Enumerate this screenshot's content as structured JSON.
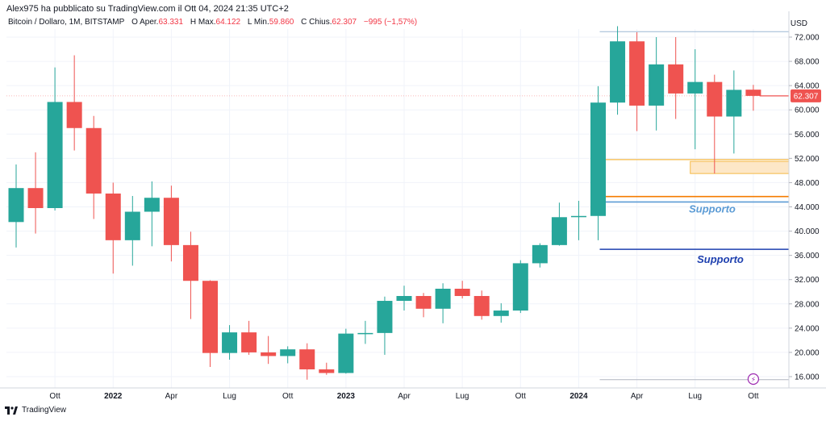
{
  "header": {
    "published_by": "Alex975 ha pubblicato su TradingView.com il Ott 04, 2024 21:35 UTC+2"
  },
  "symbol_line": {
    "name": "Bitcoin / Dollaro, 1M, BITSTAMP",
    "open_label": "O",
    "open_name": "Aper.",
    "open_value": "63.331",
    "high_label": "H",
    "high_name": "Max.",
    "high_value": "64.122",
    "low_label": "L",
    "low_name": "Min.",
    "low_value": "59.860",
    "close_label": "C",
    "close_name": "Chius.",
    "close_value": "62.307",
    "change": "−995 (−1,57%)"
  },
  "footer": {
    "brand": "TradingView"
  },
  "colors": {
    "up": "#26a69a",
    "down": "#ef5350",
    "grid": "#f0f3fa",
    "support_light": "#5b9bd5",
    "support_dark": "#1e40af",
    "orange_line": "#f57c00",
    "zone_fill": "#fde7c7",
    "zone_border": "#f5b945",
    "price_tag": "#ef5350"
  },
  "chart_data": {
    "type": "candlestick",
    "title": "Bitcoin / Dollaro, 1M, BITSTAMP",
    "currency_label": "USD",
    "y_ticks": [
      "72.000",
      "68.000",
      "64.000",
      "60.000",
      "56.000",
      "52.000",
      "48.000",
      "44.000",
      "40.000",
      "36.000",
      "32.000",
      "28.000",
      "24.000",
      "20.000",
      "16.000"
    ],
    "y_tick_values": [
      72000,
      68000,
      64000,
      60000,
      56000,
      52000,
      48000,
      44000,
      40000,
      36000,
      32000,
      28000,
      24000,
      20000,
      16000
    ],
    "ylim": [
      14000,
      75000
    ],
    "x_labels": [
      {
        "label": "Ott",
        "index": 2
      },
      {
        "label": "2022",
        "index": 5,
        "bold": true
      },
      {
        "label": "Apr",
        "index": 8
      },
      {
        "label": "Lug",
        "index": 11
      },
      {
        "label": "Ott",
        "index": 14
      },
      {
        "label": "2023",
        "index": 17,
        "bold": true
      },
      {
        "label": "Apr",
        "index": 20
      },
      {
        "label": "Lug",
        "index": 23
      },
      {
        "label": "Ott",
        "index": 26
      },
      {
        "label": "2024",
        "index": 29,
        "bold": true
      },
      {
        "label": "Apr",
        "index": 32
      },
      {
        "label": "Lug",
        "index": 35
      },
      {
        "label": "Ott",
        "index": 38
      }
    ],
    "candles": [
      {
        "o": 41500,
        "h": 51000,
        "l": 37300,
        "c": 47100
      },
      {
        "o": 47100,
        "h": 53000,
        "l": 39600,
        "c": 43800
      },
      {
        "o": 43800,
        "h": 67000,
        "l": 43400,
        "c": 61300
      },
      {
        "o": 61300,
        "h": 69000,
        "l": 53300,
        "c": 57000
      },
      {
        "o": 57000,
        "h": 59000,
        "l": 42000,
        "c": 46200
      },
      {
        "o": 46200,
        "h": 48000,
        "l": 33000,
        "c": 38500
      },
      {
        "o": 38500,
        "h": 45800,
        "l": 34300,
        "c": 43200
      },
      {
        "o": 43200,
        "h": 48200,
        "l": 37500,
        "c": 45500
      },
      {
        "o": 45500,
        "h": 47500,
        "l": 35000,
        "c": 37700
      },
      {
        "o": 37700,
        "h": 39900,
        "l": 25500,
        "c": 31800
      },
      {
        "o": 31800,
        "h": 31900,
        "l": 17600,
        "c": 19900
      },
      {
        "o": 19900,
        "h": 24500,
        "l": 18800,
        "c": 23300
      },
      {
        "o": 23300,
        "h": 25200,
        "l": 19600,
        "c": 20000
      },
      {
        "o": 20000,
        "h": 22700,
        "l": 18100,
        "c": 19400
      },
      {
        "o": 19400,
        "h": 21000,
        "l": 18200,
        "c": 20500
      },
      {
        "o": 20500,
        "h": 21500,
        "l": 15500,
        "c": 17200
      },
      {
        "o": 17200,
        "h": 18300,
        "l": 16300,
        "c": 16600
      },
      {
        "o": 16600,
        "h": 23900,
        "l": 16500,
        "c": 23100
      },
      {
        "o": 23100,
        "h": 25200,
        "l": 21400,
        "c": 23200
      },
      {
        "o": 23200,
        "h": 29200,
        "l": 19600,
        "c": 28500
      },
      {
        "o": 28500,
        "h": 31000,
        "l": 26900,
        "c": 29300
      },
      {
        "o": 29300,
        "h": 29800,
        "l": 25800,
        "c": 27200
      },
      {
        "o": 27200,
        "h": 31400,
        "l": 24800,
        "c": 30500
      },
      {
        "o": 30500,
        "h": 31800,
        "l": 28900,
        "c": 29300
      },
      {
        "o": 29300,
        "h": 30200,
        "l": 25400,
        "c": 26000
      },
      {
        "o": 26000,
        "h": 28100,
        "l": 24900,
        "c": 26900
      },
      {
        "o": 26900,
        "h": 35200,
        "l": 26500,
        "c": 34700
      },
      {
        "o": 34700,
        "h": 38000,
        "l": 34000,
        "c": 37700
      },
      {
        "o": 37700,
        "h": 44700,
        "l": 37600,
        "c": 42300
      },
      {
        "o": 42300,
        "h": 45000,
        "l": 38500,
        "c": 42500
      },
      {
        "o": 42500,
        "h": 63900,
        "l": 38500,
        "c": 61200
      },
      {
        "o": 61200,
        "h": 73800,
        "l": 59200,
        "c": 71300
      },
      {
        "o": 71300,
        "h": 72800,
        "l": 56500,
        "c": 60700
      },
      {
        "o": 60700,
        "h": 72000,
        "l": 56600,
        "c": 67500
      },
      {
        "o": 67500,
        "h": 72000,
        "l": 58500,
        "c": 62700
      },
      {
        "o": 62700,
        "h": 70000,
        "l": 53500,
        "c": 64600
      },
      {
        "o": 64600,
        "h": 65800,
        "l": 49500,
        "c": 58900
      },
      {
        "o": 58900,
        "h": 66500,
        "l": 52800,
        "c": 63300
      },
      {
        "o": 63331,
        "h": 64122,
        "l": 59860,
        "c": 62307
      }
    ],
    "annotations": {
      "current_price": {
        "value": 62307,
        "label": "62.307"
      },
      "top_hline": {
        "value": 72900
      },
      "bottom_hline": {
        "value": 15500
      },
      "support_zone": {
        "from_index": 35,
        "y_top": 51500,
        "y_bottom": 49500
      },
      "orange_line_upper": {
        "from_index": 30,
        "value": 51800
      },
      "orange_line_lower": {
        "from_index": 30,
        "value": 45700
      },
      "support_line_1": {
        "from_index": 30,
        "value": 44800,
        "label": "Supporto"
      },
      "support_line_2": {
        "from_index": 30,
        "value": 37000,
        "label": "Supporto"
      },
      "event_marker": {
        "index": 38,
        "value": 15500,
        "symbol": "⚡"
      }
    }
  }
}
